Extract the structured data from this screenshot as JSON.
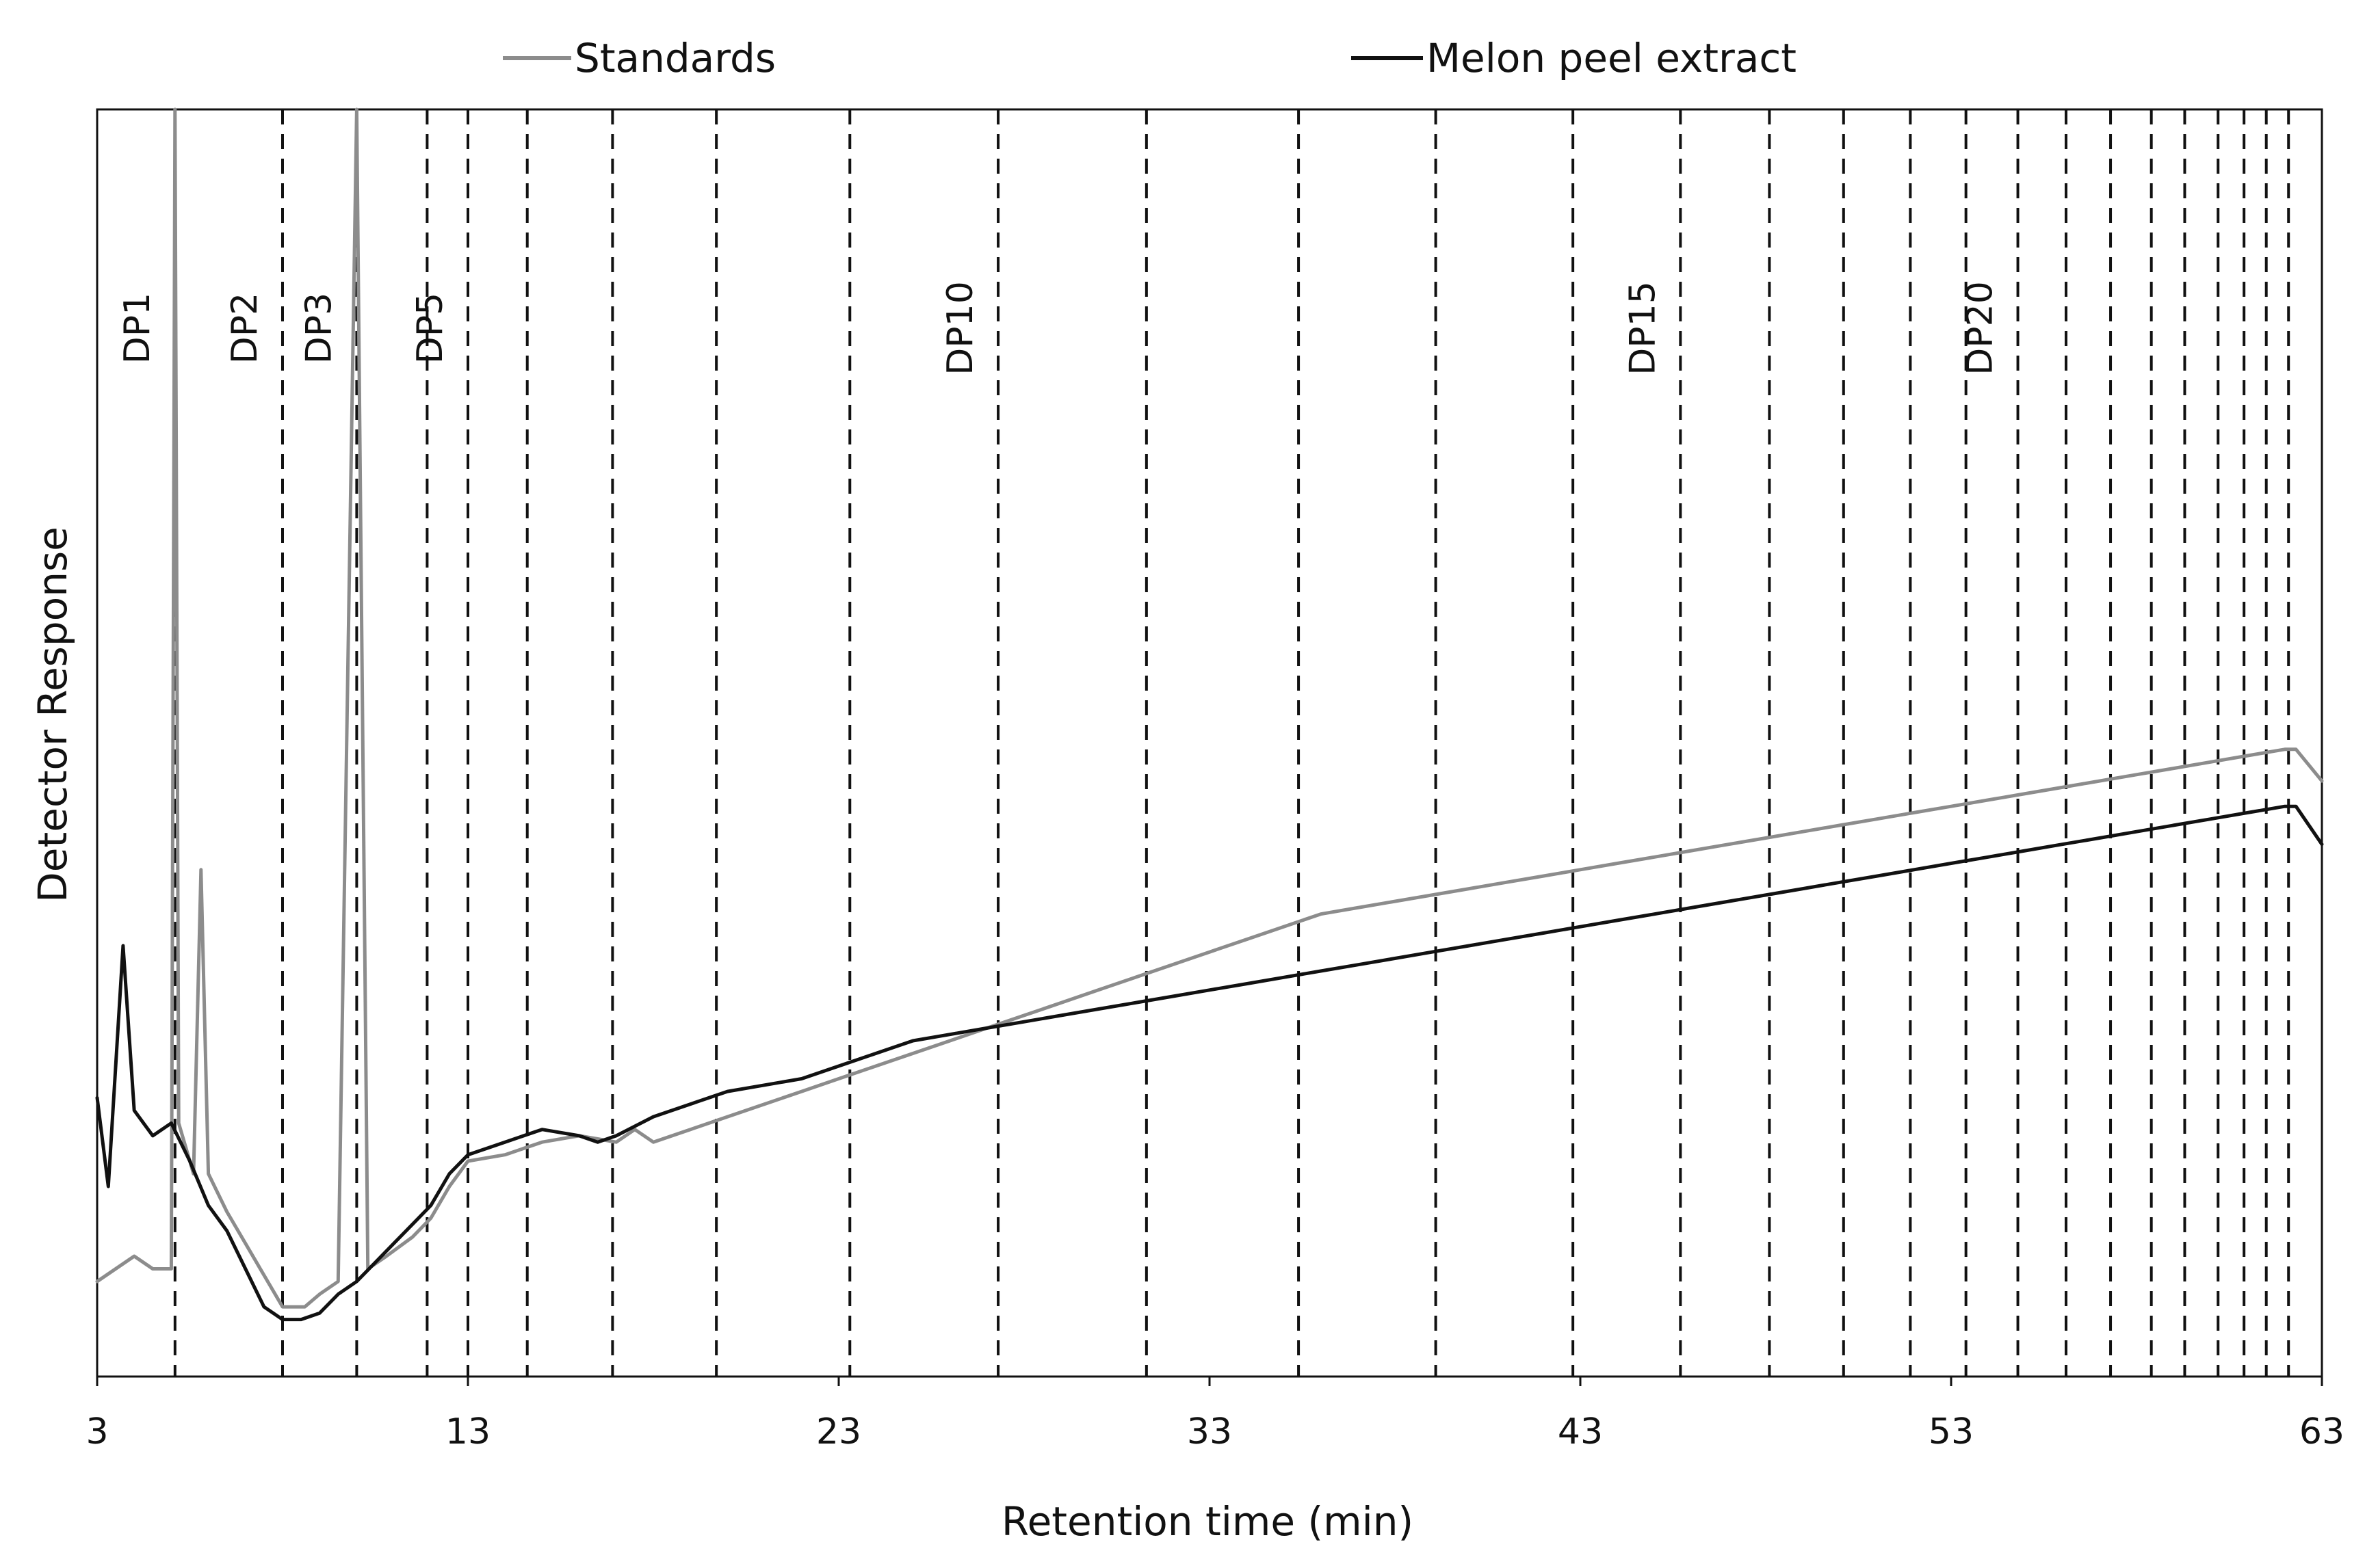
{
  "chart_data": {
    "type": "line",
    "title": "",
    "xlabel": "Retention time (min)",
    "ylabel": "Detector Response",
    "xlim": [
      3,
      63
    ],
    "ylim": [
      0,
      100
    ],
    "x_ticks": [
      3,
      13,
      23,
      33,
      43,
      53,
      63
    ],
    "y_ticks_shown": false,
    "grid": false,
    "legend_position": "top",
    "legend": [
      {
        "label": "Standards",
        "color": "#8c8c8c"
      },
      {
        "label": "Melon peel extract",
        "color": "#111111"
      }
    ],
    "dp_markers": [
      {
        "x": 5.1,
        "label": "DP1"
      },
      {
        "x": 8.0,
        "label": "DP2"
      },
      {
        "x": 10.0,
        "label": "DP3"
      },
      {
        "x": 11.9,
        "label": ""
      },
      {
        "x": 13.0,
        "label": "DP5"
      },
      {
        "x": 14.6,
        "label": ""
      },
      {
        "x": 16.9,
        "label": ""
      },
      {
        "x": 19.7,
        "label": ""
      },
      {
        "x": 23.3,
        "label": ""
      },
      {
        "x": 27.3,
        "label": "DP10"
      },
      {
        "x": 31.3,
        "label": ""
      },
      {
        "x": 35.4,
        "label": ""
      },
      {
        "x": 39.1,
        "label": ""
      },
      {
        "x": 42.8,
        "label": ""
      },
      {
        "x": 45.7,
        "label": "DP15"
      },
      {
        "x": 48.1,
        "label": ""
      },
      {
        "x": 50.1,
        "label": ""
      },
      {
        "x": 51.9,
        "label": ""
      },
      {
        "x": 53.4,
        "label": ""
      },
      {
        "x": 54.8,
        "label": "DP20"
      },
      {
        "x": 56.1,
        "label": ""
      },
      {
        "x": 57.3,
        "label": ""
      },
      {
        "x": 58.4,
        "label": ""
      },
      {
        "x": 59.3,
        "label": ""
      },
      {
        "x": 60.2,
        "label": ""
      },
      {
        "x": 60.9,
        "label": ""
      },
      {
        "x": 61.5,
        "label": ""
      },
      {
        "x": 62.1,
        "label": ""
      }
    ],
    "series": [
      {
        "name": "Standards",
        "color": "#8c8c8c",
        "x": [
          3.0,
          3.5,
          4.0,
          4.5,
          5.0,
          5.1,
          5.2,
          5.6,
          5.8,
          6.0,
          6.5,
          7.0,
          7.5,
          8.0,
          8.6,
          9.0,
          9.5,
          10.0,
          10.3,
          10.8,
          11.5,
          12.0,
          12.5,
          13.0,
          14.0,
          15.0,
          16.0,
          17.0,
          17.5,
          18.0,
          19.0,
          20.0,
          21.0,
          22.0,
          23.0,
          24.0,
          25.0,
          26.0,
          27.0,
          28.0,
          29.0,
          30.0,
          31.0,
          32.0,
          33.0,
          34.0,
          35.0,
          36.0,
          37.0,
          38.0,
          39.0,
          40.0,
          41.0,
          42.0,
          43.0,
          44.0,
          45.0,
          46.0,
          47.0,
          48.0,
          49.0,
          50.0,
          51.0,
          52.0,
          53.0,
          54.0,
          55.0,
          56.0,
          57.0,
          58.0,
          59.0,
          60.0,
          61.0,
          62.0,
          62.3,
          63.0
        ],
        "y": [
          7.5,
          8.5,
          9.5,
          8.5,
          8.5,
          100,
          20,
          16,
          40,
          16,
          13,
          10.5,
          8,
          5.5,
          5.5,
          6.5,
          7.5,
          100,
          8.5,
          9.5,
          11,
          12.5,
          15,
          17,
          17.5,
          18.5,
          19,
          18.5,
          19.5,
          18.5,
          19.5,
          20.5,
          21.5,
          22.5,
          23.5,
          24.5,
          25.5,
          26.5,
          27.5,
          28.5,
          29.5,
          30.5,
          31.5,
          32.5,
          33.5,
          34.5,
          35.5,
          36.5,
          37,
          37.5,
          38,
          38.5,
          39,
          39.5,
          40,
          40.5,
          41,
          41.5,
          42,
          42.5,
          43,
          43.5,
          44,
          44.5,
          45,
          45.5,
          46,
          46.5,
          47,
          47.5,
          48,
          48.5,
          49,
          49.5,
          49.5,
          47
        ]
      },
      {
        "name": "Melon peel extract",
        "color": "#111111",
        "x": [
          3.0,
          3.3,
          3.7,
          4.0,
          4.5,
          5.0,
          5.5,
          6.0,
          6.5,
          7.0,
          7.5,
          8.0,
          8.5,
          9.0,
          9.5,
          10.0,
          10.5,
          11.0,
          11.5,
          12.0,
          12.5,
          13.0,
          14.0,
          15.0,
          16.0,
          16.5,
          17.0,
          18.0,
          19.0,
          20.0,
          21.0,
          22.0,
          23.0,
          24.0,
          25.0,
          26.0,
          27.0,
          28.0,
          29.0,
          30.0,
          31.0,
          32.0,
          33.0,
          34.0,
          35.0,
          36.0,
          37.0,
          38.0,
          39.0,
          40.0,
          41.0,
          42.0,
          43.0,
          44.0,
          45.0,
          46.0,
          47.0,
          48.0,
          49.0,
          50.0,
          51.0,
          52.0,
          53.0,
          54.0,
          55.0,
          56.0,
          57.0,
          58.0,
          59.0,
          60.0,
          61.0,
          62.0,
          62.3,
          63.0
        ],
        "y": [
          22,
          15,
          34,
          21,
          19,
          20,
          17,
          13.5,
          11.5,
          8.5,
          5.5,
          4.5,
          4.5,
          5,
          6.5,
          7.5,
          9,
          10.5,
          12,
          13.5,
          16,
          17.5,
          18.5,
          19.5,
          19,
          18.5,
          19,
          20.5,
          21.5,
          22.5,
          23,
          23.5,
          24.5,
          25.5,
          26.5,
          27,
          27.5,
          28,
          28.5,
          29,
          29.5,
          30,
          30.5,
          31,
          31.5,
          32,
          32.5,
          33,
          33.5,
          34,
          34.5,
          35,
          35.5,
          36,
          36.5,
          37,
          37.5,
          38,
          38.5,
          39,
          39.5,
          40,
          40.5,
          41,
          41.5,
          42,
          42.5,
          43,
          43.5,
          44,
          44.5,
          45,
          45,
          42
        ]
      }
    ]
  }
}
